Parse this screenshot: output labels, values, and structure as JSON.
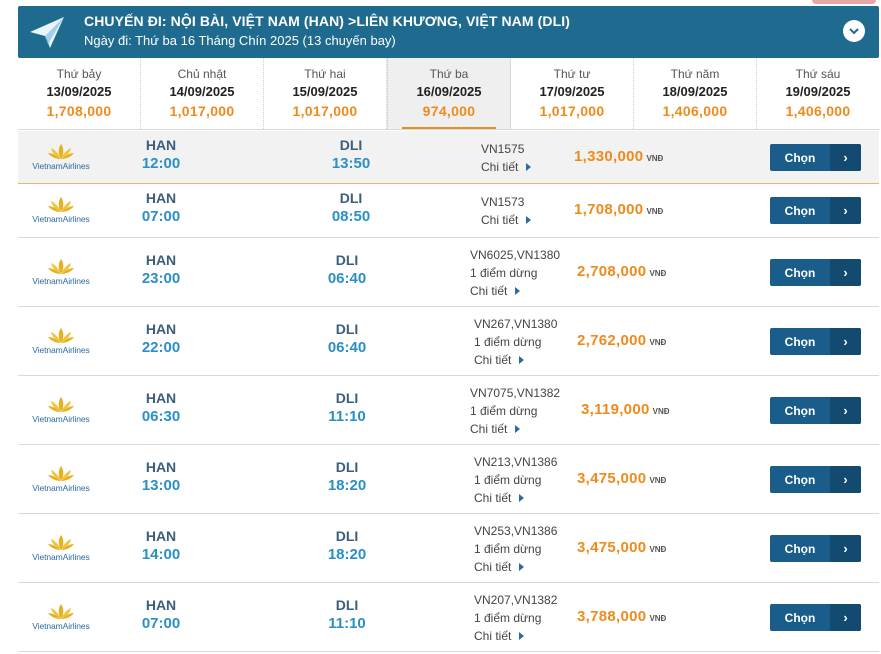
{
  "header": {
    "title": "CHUYẾN ĐI: NỘI BÀI, VIỆT NAM (HAN) >LIÊN KHƯƠNG, VIỆT NAM (DLI)",
    "subtitle": "Ngày đi: Thứ ba 16 Tháng Chín 2025 (13 chuyến bay)",
    "icons": {
      "plane": "paper-plane-icon",
      "collapse": "chevron-down-icon"
    }
  },
  "dates": [
    {
      "dow": "Thứ bảy",
      "date": "13/09/2025",
      "price": "1,708,000"
    },
    {
      "dow": "Chủ nhật",
      "date": "14/09/2025",
      "price": "1,017,000"
    },
    {
      "dow": "Thứ hai",
      "date": "15/09/2025",
      "price": "1,017,000"
    },
    {
      "dow": "Thứ ba",
      "date": "16/09/2025",
      "price": "974,000",
      "selected": true
    },
    {
      "dow": "Thứ tư",
      "date": "17/09/2025",
      "price": "1,017,000"
    },
    {
      "dow": "Thứ năm",
      "date": "18/09/2025",
      "price": "1,406,000"
    },
    {
      "dow": "Thứ sáu",
      "date": "19/09/2025",
      "price": "1,406,000"
    }
  ],
  "airline": {
    "name": "VietnamAirlines"
  },
  "common": {
    "detail": "Chi tiết",
    "currency": "VNĐ",
    "select": "Chọn",
    "arrow": "›"
  },
  "flights": [
    {
      "from": "HAN",
      "dep": "12:00",
      "to": "DLI",
      "arr": "13:50",
      "flight_no": "VN1575",
      "stops": "",
      "price": "1,330,000"
    },
    {
      "from": "HAN",
      "dep": "07:00",
      "to": "DLI",
      "arr": "08:50",
      "flight_no": "VN1573",
      "stops": "",
      "price": "1,708,000"
    },
    {
      "from": "HAN",
      "dep": "23:00",
      "to": "DLI",
      "arr": "06:40",
      "flight_no": "VN6025,VN1380",
      "stops": "1 điểm dừng",
      "price": "2,708,000"
    },
    {
      "from": "HAN",
      "dep": "22:00",
      "to": "DLI",
      "arr": "06:40",
      "flight_no": "VN267,VN1380",
      "stops": "1 điểm dừng",
      "price": "2,762,000"
    },
    {
      "from": "HAN",
      "dep": "06:30",
      "to": "DLI",
      "arr": "11:10",
      "flight_no": "VN7075,VN1382",
      "stops": "1 điểm dừng",
      "price": "3,119,000"
    },
    {
      "from": "HAN",
      "dep": "13:00",
      "to": "DLI",
      "arr": "18:20",
      "flight_no": "VN213,VN1386",
      "stops": "1 điểm dừng",
      "price": "3,475,000"
    },
    {
      "from": "HAN",
      "dep": "14:00",
      "to": "DLI",
      "arr": "18:20",
      "flight_no": "VN253,VN1386",
      "stops": "1 điểm dừng",
      "price": "3,475,000"
    },
    {
      "from": "HAN",
      "dep": "07:00",
      "to": "DLI",
      "arr": "11:10",
      "flight_no": "VN207,VN1382",
      "stops": "1 điểm dừng",
      "price": "3,788,000"
    }
  ]
}
